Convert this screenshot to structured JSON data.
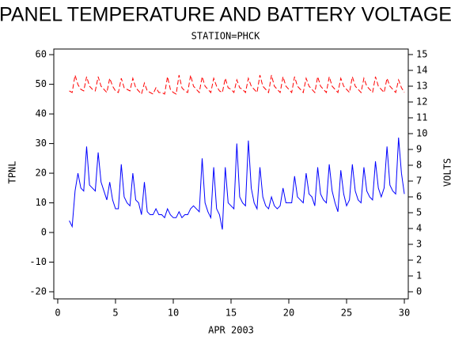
{
  "chart_data": {
    "type": "line",
    "title": "PANEL TEMPERATURE AND BATTERY VOLTAGE",
    "subtitle": "STATION=PHCK",
    "xlabel": "APR 2003",
    "ylabel": "TPNL",
    "y2label": "VOLTS",
    "x": [
      1,
      1.25,
      1.5,
      1.75,
      2,
      2.25,
      2.5,
      2.75,
      3,
      3.25,
      3.5,
      3.75,
      4,
      4.25,
      4.5,
      4.75,
      5,
      5.25,
      5.5,
      5.75,
      6,
      6.25,
      6.5,
      6.75,
      7,
      7.25,
      7.5,
      7.75,
      8,
      8.25,
      8.5,
      8.75,
      9,
      9.25,
      9.5,
      9.75,
      10,
      10.25,
      10.5,
      10.75,
      11,
      11.25,
      11.5,
      11.75,
      12,
      12.25,
      12.5,
      12.75,
      13,
      13.25,
      13.5,
      13.75,
      14,
      14.25,
      14.5,
      14.75,
      15,
      15.25,
      15.5,
      15.75,
      16,
      16.25,
      16.5,
      16.75,
      17,
      17.25,
      17.5,
      17.75,
      18,
      18.25,
      18.5,
      18.75,
      19,
      19.25,
      19.5,
      19.75,
      20,
      20.25,
      20.5,
      20.75,
      21,
      21.25,
      21.5,
      21.75,
      22,
      22.25,
      22.5,
      22.75,
      23,
      23.25,
      23.5,
      23.75,
      24,
      24.25,
      24.5,
      24.75,
      25,
      25.25,
      25.5,
      25.75,
      26,
      26.25,
      26.5,
      26.75,
      27,
      27.25,
      27.5,
      27.75,
      28,
      28.25,
      28.5,
      28.75,
      29,
      29.25,
      29.5,
      29.75,
      30
    ],
    "series": [
      {
        "name": "TPNL",
        "color": "#0000ff",
        "dash": false,
        "values": [
          4,
          2,
          14,
          20,
          15,
          14,
          29,
          16,
          15,
          14,
          27,
          17,
          14,
          11,
          17,
          11,
          8,
          8,
          23,
          12,
          10,
          9,
          20,
          11,
          10,
          6,
          17,
          7,
          6,
          6,
          8,
          6,
          6,
          5,
          8,
          6,
          5,
          5,
          7,
          5,
          6,
          6,
          8,
          9,
          8,
          7,
          25,
          10,
          7,
          5,
          22,
          8,
          6,
          1,
          22,
          10,
          9,
          8,
          30,
          12,
          10,
          9,
          31,
          15,
          10,
          8,
          22,
          12,
          9,
          8,
          12,
          9,
          8,
          9,
          15,
          10,
          10,
          10,
          19,
          12,
          11,
          10,
          20,
          13,
          12,
          9,
          22,
          13,
          11,
          10,
          23,
          14,
          10,
          7,
          21,
          13,
          9,
          11,
          23,
          14,
          11,
          10,
          22,
          14,
          12,
          11,
          24,
          15,
          12,
          15,
          29,
          16,
          14,
          13,
          32,
          20,
          13
        ]
      },
      {
        "name": "VOLTS",
        "color": "#ff0000",
        "dash": true,
        "axis": "y2",
        "values": [
          12.7,
          12.6,
          13.7,
          13.1,
          12.8,
          12.7,
          13.6,
          13.0,
          12.8,
          12.7,
          13.6,
          13.0,
          12.8,
          12.6,
          13.5,
          13.0,
          12.7,
          12.6,
          13.5,
          12.9,
          12.8,
          12.7,
          13.5,
          12.9,
          12.7,
          12.5,
          13.2,
          12.7,
          12.6,
          12.5,
          12.9,
          12.6,
          12.6,
          12.5,
          13.6,
          12.8,
          12.6,
          12.5,
          13.7,
          12.9,
          12.7,
          12.6,
          13.7,
          13.0,
          12.8,
          12.6,
          13.6,
          13.0,
          12.8,
          12.6,
          13.5,
          13.0,
          12.7,
          12.6,
          13.5,
          12.9,
          12.8,
          12.6,
          13.4,
          12.9,
          12.8,
          12.6,
          13.5,
          13.0,
          12.8,
          12.6,
          13.7,
          13.0,
          12.8,
          12.6,
          13.7,
          13.0,
          12.8,
          12.6,
          13.6,
          13.0,
          12.8,
          12.6,
          13.6,
          13.0,
          12.8,
          12.6,
          13.5,
          13.0,
          12.8,
          12.6,
          13.6,
          13.0,
          12.8,
          12.6,
          13.6,
          13.0,
          12.8,
          12.6,
          13.5,
          13.0,
          12.8,
          12.6,
          13.6,
          13.0,
          12.8,
          12.6,
          13.5,
          13.0,
          12.8,
          12.6,
          13.6,
          13.0,
          12.8,
          12.6,
          13.5,
          13.0,
          12.8,
          12.6,
          13.4,
          12.9,
          12.6
        ]
      }
    ],
    "xlim": [
      -0.34,
      30.34
    ],
    "xticks": [
      0,
      5,
      10,
      15,
      20,
      25,
      30
    ],
    "ylim": [
      -22.4,
      61.9
    ],
    "yticks": [
      -20,
      -10,
      0,
      10,
      20,
      30,
      40,
      50,
      60
    ],
    "y2lim": [
      -0.45,
      15.35
    ],
    "y2ticks": [
      0,
      1,
      2,
      3,
      4,
      5,
      6,
      7,
      8,
      9,
      10,
      11,
      12,
      13,
      14,
      15
    ]
  }
}
